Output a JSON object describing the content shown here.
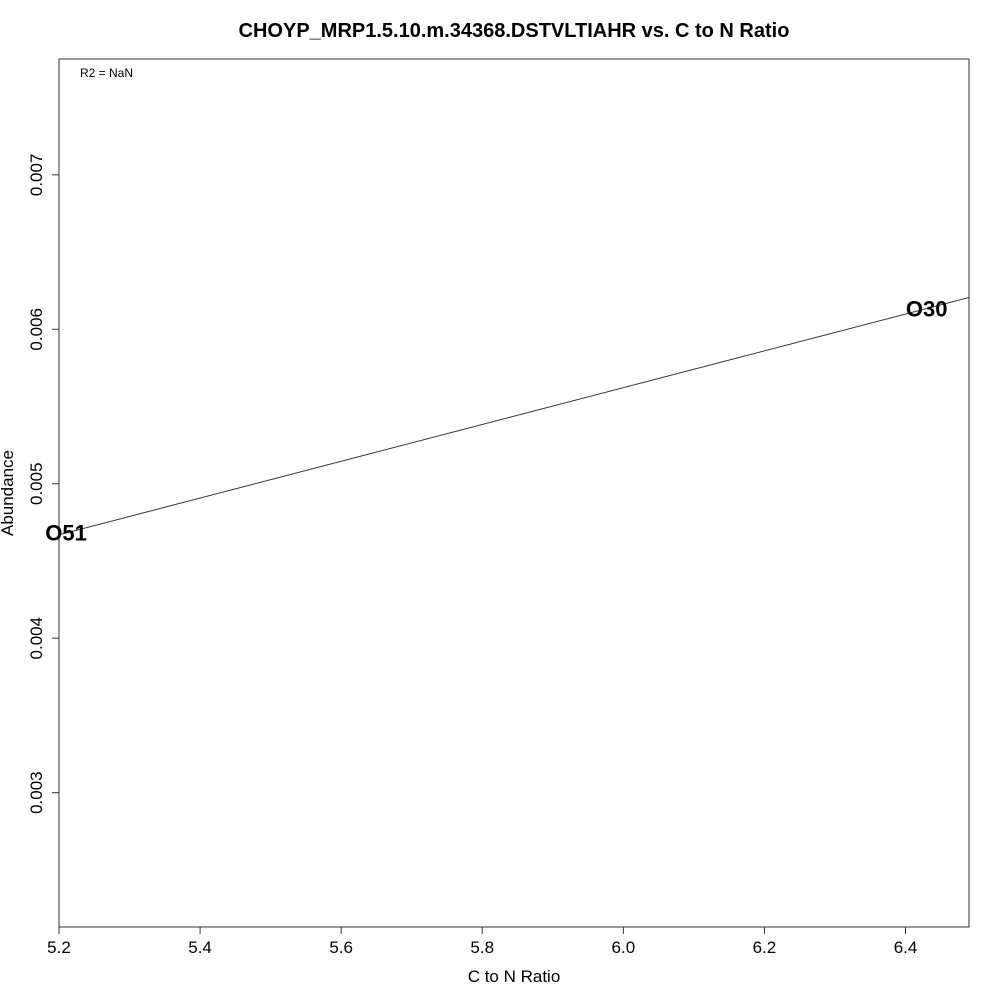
{
  "chart_data": {
    "type": "scatter",
    "title": "CHOYP_MRP1.5.10.m.34368.DSTVLTIAHR vs. C to N Ratio",
    "xlabel": "C to N Ratio",
    "ylabel": "Abundance",
    "annotation": "R2 = NaN",
    "xlim": [
      5.2,
      6.49
    ],
    "ylim": [
      0.00213,
      0.00775
    ],
    "xticks": [
      5.2,
      5.4,
      5.6,
      5.8,
      6.0,
      6.2,
      6.4
    ],
    "xtick_labels": [
      "5.2",
      "5.4",
      "5.6",
      "5.8",
      "6.0",
      "6.2",
      "6.4"
    ],
    "yticks": [
      0.003,
      0.004,
      0.005,
      0.006,
      0.007
    ],
    "ytick_labels": [
      "0.003",
      "0.004",
      "0.005",
      "0.006",
      "0.007"
    ],
    "points": [
      {
        "label": "O51",
        "x": 5.21,
        "y": 0.00468
      },
      {
        "label": "O30",
        "x": 6.43,
        "y": 0.00613
      }
    ],
    "fit_line": {
      "slope": 0.001191,
      "intercept": -0.001524
    }
  }
}
